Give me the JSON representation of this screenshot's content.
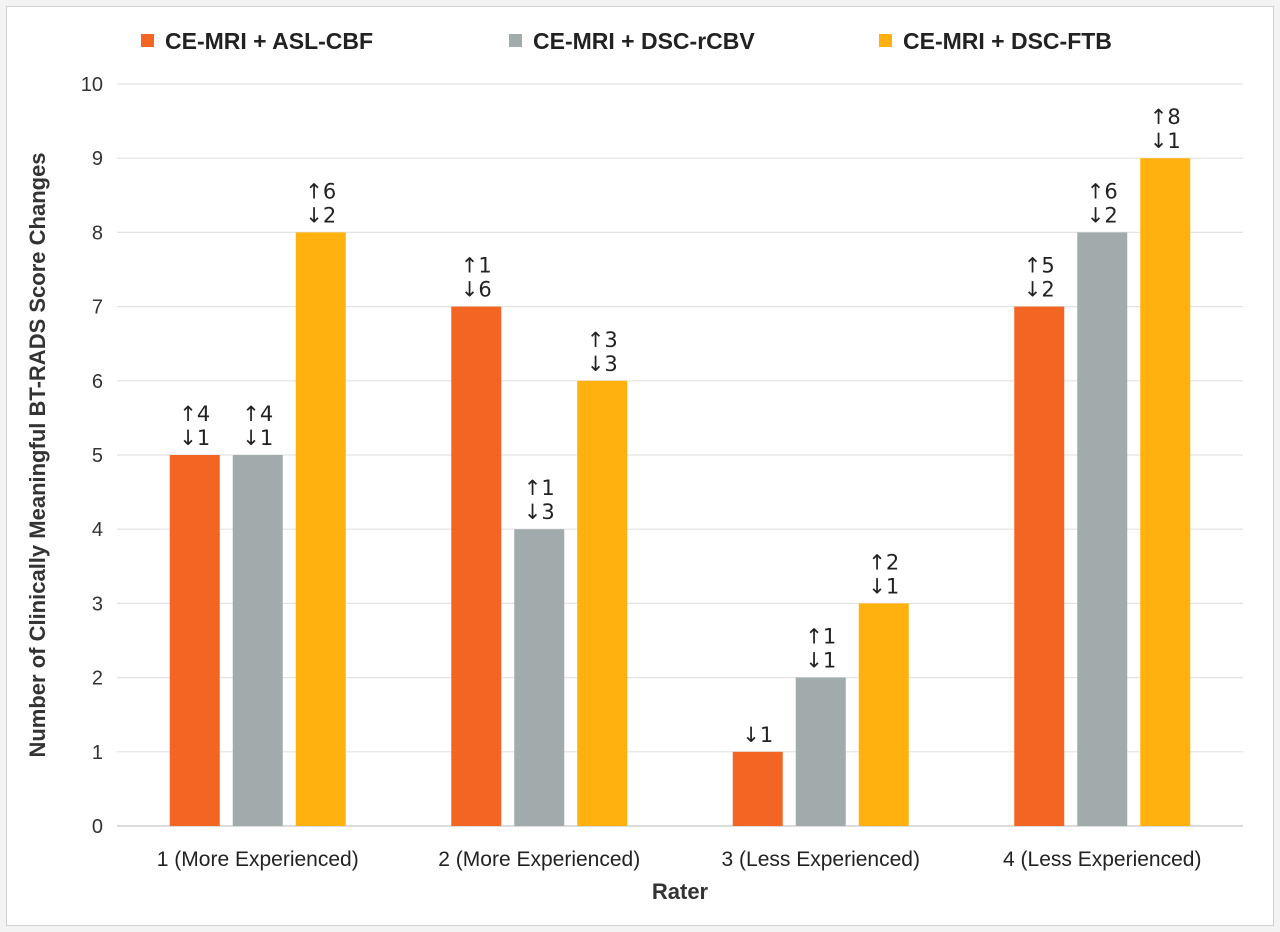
{
  "chart_data": {
    "type": "bar",
    "title": "",
    "xlabel": "Rater",
    "ylabel": "Number of Clinically Meaningful BT-RADS Score Changes",
    "ylim": [
      0,
      10
    ],
    "yticks": [
      "0",
      "1",
      "2",
      "3",
      "4",
      "5",
      "6",
      "7",
      "8",
      "9",
      "10"
    ],
    "grid": true,
    "legend_position": "top",
    "categories": [
      "1 (More Experienced)",
      "2 (More Experienced)",
      "3 (Less Experienced)",
      "4 (Less Experienced)"
    ],
    "series": [
      {
        "name": "CE-MRI + ASL-CBF",
        "color": "#f26522",
        "values": [
          5,
          7,
          1,
          7
        ],
        "annotations": [
          [
            "↑4",
            "↓1"
          ],
          [
            "↑1",
            "↓6"
          ],
          [
            "↓1"
          ],
          [
            "↑5",
            "↓2"
          ]
        ]
      },
      {
        "name": "CE-MRI + DSC-rCBV",
        "color": "#a2abab",
        "values": [
          5,
          4,
          2,
          8
        ],
        "annotations": [
          [
            "↑4",
            "↓1"
          ],
          [
            "↑1",
            "↓3"
          ],
          [
            "↑1",
            "↓1"
          ],
          [
            "↑6",
            "↓2"
          ]
        ]
      },
      {
        "name": "CE-MRI + DSC-FTB",
        "color": "#ffb20f",
        "values": [
          8,
          6,
          3,
          9
        ],
        "annotations": [
          [
            "↑6",
            "↓2"
          ],
          [
            "↑3",
            "↓3"
          ],
          [
            "↑2",
            "↓1"
          ],
          [
            "↑8",
            "↓1"
          ]
        ]
      }
    ]
  }
}
